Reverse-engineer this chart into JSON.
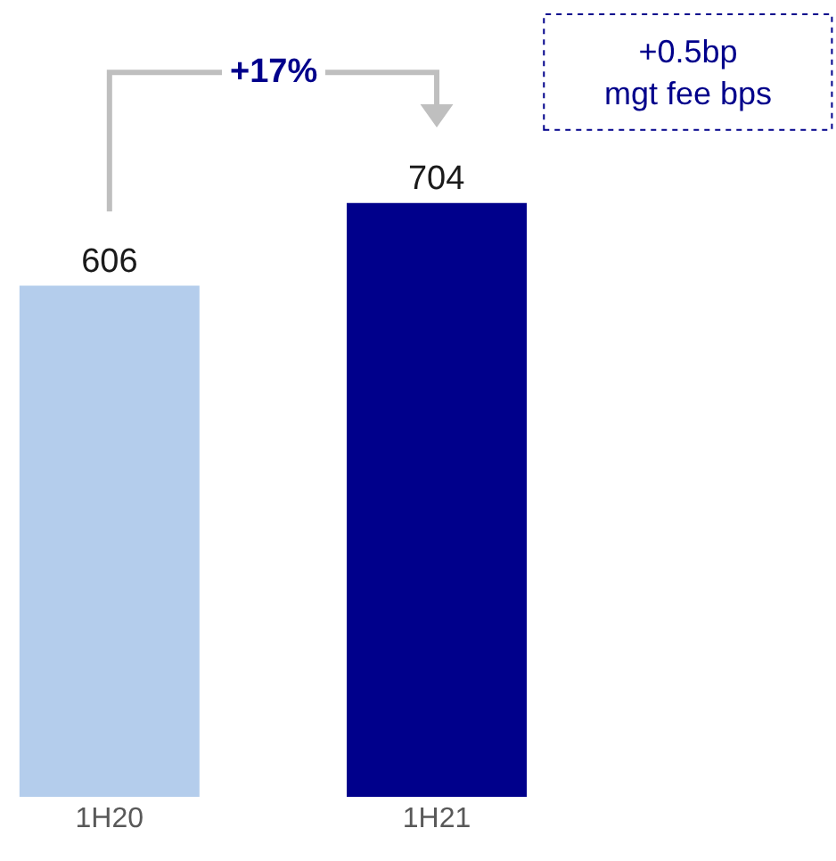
{
  "chart_data": {
    "type": "bar",
    "categories": [
      "1H20",
      "1H21"
    ],
    "values": [
      606,
      704
    ],
    "colors": [
      "#b4cdec",
      "#00008b"
    ],
    "data_labels": true,
    "annotations": [
      "+17%",
      "+0.5bp\nmgt fee bps"
    ]
  }
}
